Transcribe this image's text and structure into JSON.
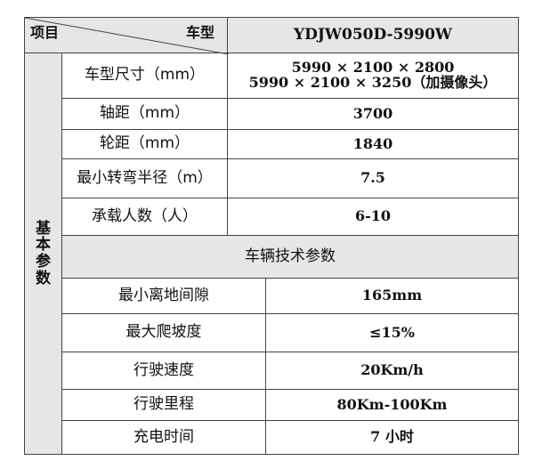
{
  "header": {
    "item_label": "项目",
    "model_label": "车型",
    "model_value": "YDJW050D-5990W"
  },
  "group_label": [
    "基",
    "本",
    "参",
    "数"
  ],
  "basic_rows": [
    {
      "label": "车型尺寸（mm）",
      "values": [
        "5990 × 2100 × 2800",
        "5990 × 2100 × 3250（加摄像头）"
      ]
    },
    {
      "label": "轴距（mm）",
      "values": [
        "3700"
      ]
    },
    {
      "label": "轮距（mm）",
      "values": [
        "1840"
      ]
    },
    {
      "label": "最小转弯半径（m）",
      "values": [
        "7.5"
      ]
    },
    {
      "label": "承载人数（人）",
      "values": [
        "6-10"
      ]
    }
  ],
  "section_title": "车辆技术参数",
  "tech_rows": [
    {
      "label": "最小离地间隙",
      "value": "165mm"
    },
    {
      "label": "最大爬坡度",
      "value": "≤15%"
    },
    {
      "label": "行驶速度",
      "value": "20Km/h"
    },
    {
      "label": "行驶里程",
      "value": "80Km-100Km"
    },
    {
      "label": "充电时间",
      "value": "7 小时"
    }
  ]
}
